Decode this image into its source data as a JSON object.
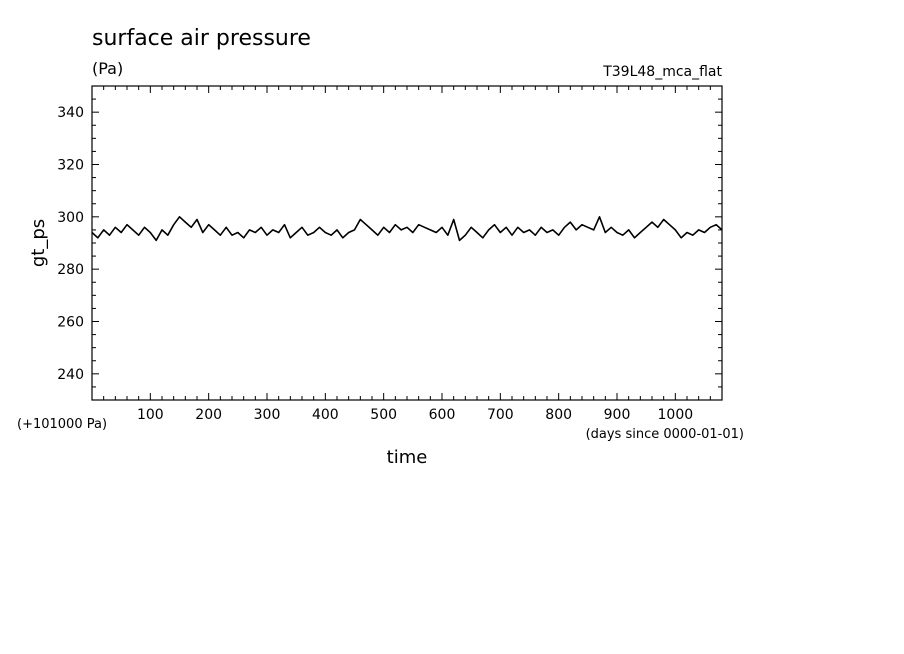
{
  "chart_data": {
    "type": "line",
    "title": "surface air pressure",
    "unit": "(Pa)",
    "run_label": "T39L48_mca_flat",
    "xlabel": "time",
    "x_unit": "(days since 0000-01-01)",
    "ylabel": "gt_ps",
    "y_offset_label": "(+101000 Pa)",
    "xlim": [
      0,
      1080
    ],
    "ylim": [
      230,
      350
    ],
    "x_ticks": [
      100,
      200,
      300,
      400,
      500,
      600,
      700,
      800,
      900,
      1000
    ],
    "y_ticks": [
      240,
      260,
      280,
      300,
      320,
      340
    ],
    "grid": false,
    "series": [
      {
        "x": [
          0,
          10,
          20,
          30,
          40,
          50,
          60,
          70,
          80,
          90,
          100,
          110,
          120,
          130,
          140,
          150,
          160,
          170,
          180,
          190,
          200,
          210,
          220,
          230,
          240,
          250,
          260,
          270,
          280,
          290,
          300,
          310,
          320,
          330,
          340,
          350,
          360,
          370,
          380,
          390,
          400,
          410,
          420,
          430,
          440,
          450,
          460,
          470,
          480,
          490,
          500,
          510,
          520,
          530,
          540,
          550,
          560,
          570,
          580,
          590,
          600,
          610,
          620,
          630,
          640,
          650,
          660,
          670,
          680,
          690,
          700,
          710,
          720,
          730,
          740,
          750,
          760,
          770,
          780,
          790,
          800,
          810,
          820,
          830,
          840,
          850,
          860,
          870,
          880,
          890,
          900,
          910,
          920,
          930,
          940,
          950,
          960,
          970,
          980,
          990,
          1000,
          1010,
          1020,
          1030,
          1040,
          1050,
          1060,
          1070,
          1080
        ],
        "values": [
          294,
          292,
          295,
          293,
          296,
          294,
          297,
          295,
          293,
          296,
          294,
          291,
          295,
          293,
          297,
          300,
          298,
          296,
          299,
          294,
          297,
          295,
          293,
          296,
          293,
          294,
          292,
          295,
          294,
          296,
          293,
          295,
          294,
          297,
          292,
          294,
          296,
          293,
          294,
          296,
          294,
          293,
          295,
          292,
          294,
          295,
          299,
          297,
          295,
          293,
          296,
          294,
          297,
          295,
          296,
          294,
          297,
          296,
          295,
          294,
          296,
          293,
          299,
          291,
          293,
          296,
          294,
          292,
          295,
          297,
          294,
          296,
          293,
          296,
          294,
          295,
          293,
          296,
          294,
          295,
          293,
          296,
          298,
          295,
          297,
          296,
          295,
          300,
          294,
          296,
          294,
          293,
          295,
          292,
          294,
          296,
          298,
          296,
          299,
          297,
          295,
          292,
          294,
          293,
          295,
          294,
          296,
          297,
          295
        ]
      }
    ]
  }
}
